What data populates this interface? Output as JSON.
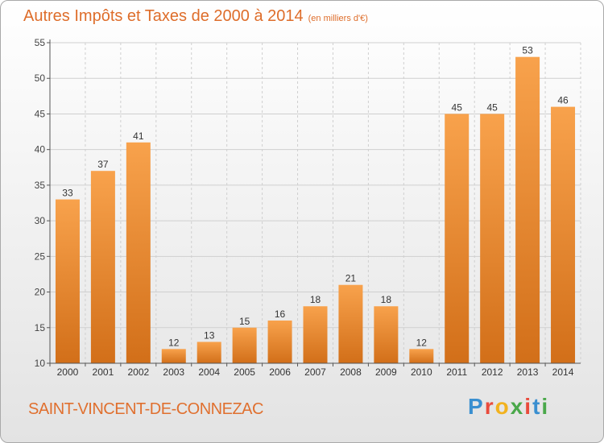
{
  "title": {
    "main": "Autres Impôts et Taxes de 2000 à 2014",
    "unit": "(en milliers d'€)"
  },
  "commune": "SAINT-VINCENT-DE-CONNEZAC",
  "logo": {
    "letters": [
      "P",
      "r",
      "o",
      "x",
      "i",
      "t",
      "i"
    ],
    "colors": [
      "#3a8fd0",
      "#e94b3c",
      "#f2b21e",
      "#4aa84a",
      "#e94b3c",
      "#3a8fd0",
      "#4aa84a"
    ]
  },
  "colors": {
    "bar_top": "#f8a24c",
    "bar_bottom": "#d26f19",
    "accent": "#de6d2a"
  },
  "chart_data": {
    "type": "bar",
    "categories": [
      "2000",
      "2001",
      "2002",
      "2003",
      "2004",
      "2005",
      "2006",
      "2007",
      "2008",
      "2009",
      "2010",
      "2011",
      "2012",
      "2013",
      "2014"
    ],
    "values": [
      33,
      37,
      41,
      12,
      13,
      15,
      16,
      18,
      21,
      18,
      12,
      45,
      45,
      53,
      46
    ],
    "ylim": [
      10,
      55
    ],
    "yticks": [
      10,
      15,
      20,
      25,
      30,
      35,
      40,
      45,
      50,
      55
    ],
    "grid": true,
    "data_labels": true,
    "xlabel": "",
    "ylabel": ""
  }
}
